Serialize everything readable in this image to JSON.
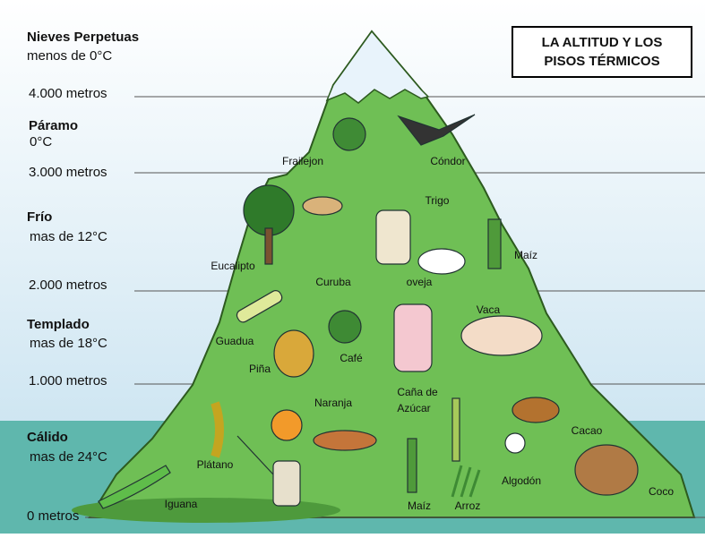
{
  "title": {
    "lines": [
      "LA ALTITUD Y LOS",
      "PISOS TÉRMICOS"
    ]
  },
  "zones": [
    {
      "name": "Nieves Perpetuas",
      "temp": "menos de 0°C"
    },
    {
      "name": "Páramo",
      "temp": "0°C"
    },
    {
      "name": "Frío",
      "temp": "mas de 12°C"
    },
    {
      "name": "Templado",
      "temp": "mas de 18°C"
    },
    {
      "name": "Cálido",
      "temp": "mas de 24°C"
    }
  ],
  "altitudes": [
    "4.000 metros",
    "3.000 metros",
    "2.000 metros",
    "1.000 metros",
    "0 metros"
  ],
  "labels": [
    "Frailejon",
    "Cóndor",
    "Trigo",
    "Eucalipto",
    "Curuba",
    "oveja",
    "Maíz",
    "Vaca",
    "Guadua",
    "Piña",
    "Café",
    "Naranja",
    "Cacao",
    "Plátano",
    "Algodón",
    "Iguana",
    "Maíz",
    "Arroz",
    "Coco"
  ],
  "cane": [
    "Caña de",
    "Azúcar"
  ]
}
